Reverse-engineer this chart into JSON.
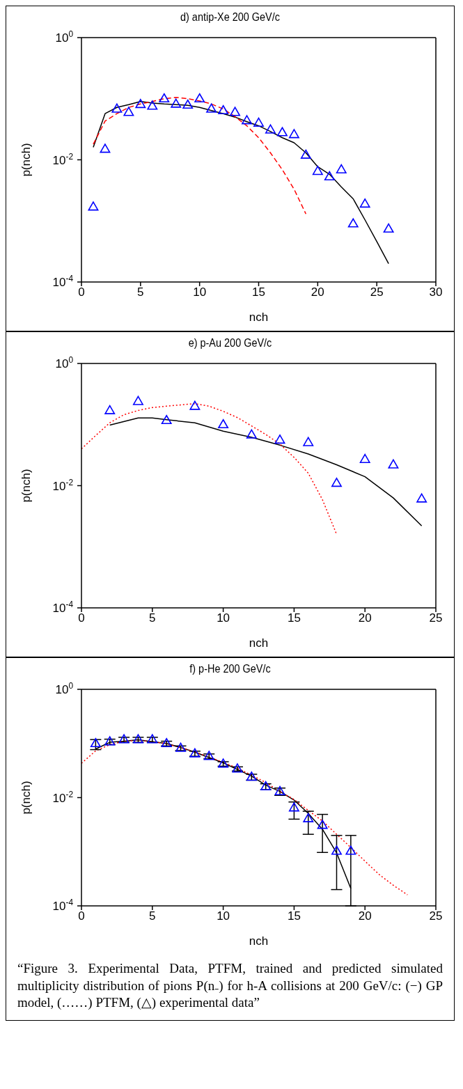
{
  "chart_data": [
    {
      "type": "scatter",
      "title": "d) antip-Xe 200 GeV/c",
      "xlabel": "nch",
      "ylabel": "p(nch)",
      "log": "y",
      "xlim": [
        0,
        30
      ],
      "xticks": [
        0,
        5,
        10,
        15,
        20,
        25,
        30
      ],
      "ylim": [
        0.0001,
        1
      ],
      "yticks": [
        {
          "value": 0.0001,
          "label": "10$^{-4}$"
        },
        {
          "value": 0.01,
          "label": "10$^{-2}$"
        },
        {
          "value": 1,
          "label": "10$^{0}$"
        }
      ],
      "series": [
        {
          "type": "line",
          "color": "#000000",
          "line_style": "solid",
          "x": [
            1,
            2,
            3,
            4,
            5,
            6,
            7,
            8,
            9,
            10,
            11,
            12,
            13,
            14,
            15,
            16,
            17,
            18,
            19,
            20,
            21,
            22,
            23,
            24,
            25,
            26
          ],
          "values": [
            0.016,
            0.057,
            0.072,
            0.08,
            0.09,
            0.085,
            0.082,
            0.08,
            0.078,
            0.072,
            0.064,
            0.057,
            0.05,
            0.042,
            0.036,
            0.029,
            0.023,
            0.019,
            0.013,
            0.0077,
            0.0058,
            0.0036,
            0.0023,
            0.00104,
            0.00046,
            0.0002
          ]
        },
        {
          "type": "line",
          "color": "#ff0000",
          "line_style": "dashed",
          "x": [
            1,
            2,
            3,
            4,
            5,
            6,
            7,
            8,
            9,
            10,
            11,
            12,
            13,
            14,
            15,
            16,
            17,
            18,
            19
          ],
          "values": [
            0.018,
            0.043,
            0.057,
            0.072,
            0.082,
            0.09,
            0.1,
            0.105,
            0.1,
            0.092,
            0.082,
            0.068,
            0.051,
            0.036,
            0.023,
            0.013,
            0.0069,
            0.0033,
            0.0013
          ]
        },
        {
          "color": "#0000ff",
          "marker": "triangle",
          "x": [
            1,
            2,
            3,
            4,
            5,
            6,
            7,
            8,
            9,
            10,
            11,
            12,
            13,
            14,
            15,
            16,
            17,
            18,
            19,
            20,
            21,
            22,
            23,
            24,
            26
          ],
          "values": [
            0.0017,
            0.015,
            0.068,
            0.06,
            0.081,
            0.076,
            0.1,
            0.082,
            0.079,
            0.1,
            0.068,
            0.064,
            0.06,
            0.044,
            0.04,
            0.031,
            0.028,
            0.026,
            0.012,
            0.0065,
            0.0053,
            0.0069,
            0.0009,
            0.0019,
            0.00074
          ]
        }
      ]
    },
    {
      "type": "scatter",
      "title": "e) p-Au 200 GeV/c",
      "xlabel": "nch",
      "ylabel": "p(nch)",
      "log": "y",
      "xlim": [
        0,
        25
      ],
      "xticks": [
        0,
        5,
        10,
        15,
        20,
        25
      ],
      "ylim": [
        0.0001,
        1
      ],
      "yticks": [
        {
          "value": 0.0001,
          "label": "10$^{-4}$"
        },
        {
          "value": 0.01,
          "label": "10$^{-2}$"
        },
        {
          "value": 1,
          "label": "10$^{0}$"
        }
      ],
      "series": [
        {
          "type": "line",
          "color": "#000000",
          "line_style": "solid",
          "x": [
            2,
            4,
            5,
            6,
            8,
            10,
            12,
            14,
            16,
            18,
            20,
            22,
            24
          ],
          "values": [
            0.098,
            0.128,
            0.128,
            0.12,
            0.107,
            0.078,
            0.062,
            0.046,
            0.033,
            0.022,
            0.014,
            0.0063,
            0.0022
          ]
        },
        {
          "type": "line",
          "color": "#ff0000",
          "line_style": "dotted",
          "x": [
            0,
            1,
            2,
            3,
            4,
            5,
            6,
            7,
            8,
            9,
            10,
            11,
            12,
            13,
            14,
            15,
            16,
            17,
            18
          ],
          "values": [
            0.04,
            0.066,
            0.107,
            0.145,
            0.17,
            0.19,
            0.2,
            0.21,
            0.22,
            0.2,
            0.165,
            0.13,
            0.095,
            0.069,
            0.048,
            0.029,
            0.016,
            0.0059,
            0.0016
          ]
        },
        {
          "color": "#0000ff",
          "marker": "triangle",
          "x": [
            2,
            4,
            6,
            8,
            10,
            12,
            14,
            16,
            18,
            20,
            22,
            24
          ],
          "values": [
            0.17,
            0.24,
            0.117,
            0.2,
            0.1,
            0.068,
            0.056,
            0.051,
            0.011,
            0.027,
            0.022,
            0.0061
          ]
        }
      ]
    },
    {
      "type": "scatter",
      "title": "f) p-He 200 GeV/c",
      "xlabel": "nch",
      "ylabel": "p(nch)",
      "log": "y",
      "xlim": [
        0,
        25
      ],
      "xticks": [
        0,
        5,
        10,
        15,
        20,
        25
      ],
      "ylim": [
        0.0001,
        1
      ],
      "yticks": [
        {
          "value": 0.0001,
          "label": "10$^{-4}$"
        },
        {
          "value": 0.01,
          "label": "10$^{-2}$"
        },
        {
          "value": 1,
          "label": "10$^{0}$"
        }
      ],
      "annotations": [
        "“Figure 3. Experimental Data, PTFM, trained and predicted simulated multiplicity distribution of pions P(n₋) for h-A collisions at 200 GeV/c: (−) GP model, (……) PTFM, (△) experimental data”"
      ],
      "series": [
        {
          "type": "line",
          "color": "#000000",
          "line_style": "solid",
          "x": [
            1,
            2,
            3,
            4,
            5,
            6,
            7,
            8,
            9,
            10,
            11,
            12,
            13,
            14,
            15,
            16,
            17,
            18,
            19
          ],
          "values": [
            0.079,
            0.105,
            0.11,
            0.117,
            0.108,
            0.1,
            0.084,
            0.069,
            0.055,
            0.044,
            0.033,
            0.025,
            0.017,
            0.013,
            0.009,
            0.0051,
            0.0026,
            0.00095,
            0.00021
          ]
        },
        {
          "type": "line",
          "color": "#ff0000",
          "line_style": "dotted",
          "x": [
            0,
            1,
            2,
            3,
            4,
            5,
            6,
            7,
            8,
            9,
            10,
            11,
            12,
            13,
            14,
            15,
            16,
            17,
            18,
            19,
            20,
            21,
            22,
            23
          ],
          "values": [
            0.043,
            0.073,
            0.095,
            0.11,
            0.114,
            0.108,
            0.099,
            0.084,
            0.07,
            0.056,
            0.045,
            0.035,
            0.026,
            0.019,
            0.013,
            0.0092,
            0.0058,
            0.0037,
            0.0021,
            0.0012,
            0.00067,
            0.00038,
            0.00024,
            0.00016
          ]
        },
        {
          "color": "#0000ff",
          "marker": "triangle",
          "x": [
            1,
            2,
            3,
            4,
            5,
            6,
            7,
            8,
            9,
            10,
            11,
            12,
            13,
            14,
            15,
            16,
            17,
            18,
            19
          ],
          "values": [
            0.1,
            0.108,
            0.118,
            0.118,
            0.118,
            0.1,
            0.082,
            0.065,
            0.058,
            0.042,
            0.034,
            0.024,
            0.016,
            0.013,
            0.0065,
            0.0041,
            0.0031,
            0.00103,
            0.00103
          ],
          "errors": [
            [
              0.077,
              0.118
            ],
            [
              0.095,
              0.12
            ],
            [
              0.105,
              0.13
            ],
            [
              0.105,
              0.13
            ],
            [
              0.105,
              0.13
            ],
            [
              0.09,
              0.11
            ],
            [
              0.074,
              0.09
            ],
            [
              0.058,
              0.072
            ],
            [
              0.052,
              0.064
            ],
            [
              0.038,
              0.046
            ],
            [
              0.031,
              0.037
            ],
            [
              0.021,
              0.027
            ],
            [
              0.014,
              0.018
            ],
            [
              0.011,
              0.015
            ],
            [
              0.004,
              0.0083
            ],
            [
              0.0021,
              0.0056
            ],
            [
              0.00097,
              0.0049
            ],
            [
              0.0002,
              0.002
            ],
            [
              0.0001,
              0.002
            ]
          ]
        }
      ]
    }
  ]
}
